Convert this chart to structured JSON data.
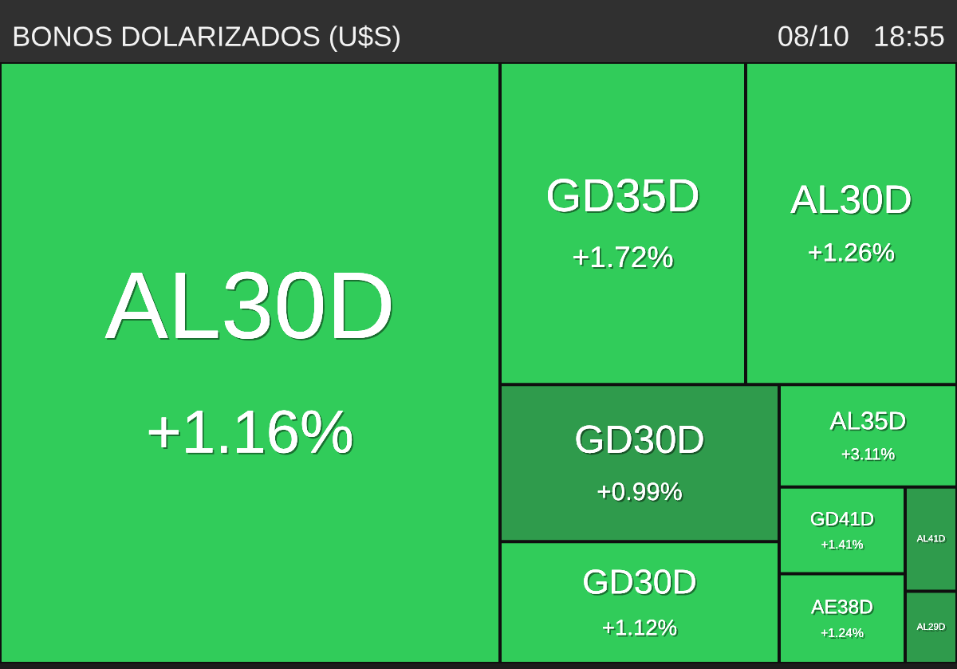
{
  "chart_data": {
    "type": "other",
    "title": "BONOS DOLARIZADOS (U$S)",
    "annotations": [
      "08/10   18:55"
    ],
    "categories": [
      "AL30D",
      "GD35D",
      "AL30D",
      "GD30D",
      "GD30D",
      "AL35D",
      "GD41D",
      "AE38D",
      "AL41D",
      "AL29D"
    ],
    "values": [
      1.16,
      1.72,
      1.26,
      0.99,
      1.12,
      3.11,
      1.41,
      1.24,
      null,
      null
    ],
    "value_labels": [
      "+1.16%",
      "+1.72%",
      "+1.26%",
      "+0.99%",
      "+1.12%",
      "+3.11%",
      "+1.41%",
      "+1.24%",
      null,
      null
    ],
    "colors": [
      "#31cc5a",
      "#31cc5a",
      "#31cc5a",
      "#2f9b4c",
      "#31cc5a",
      "#31cc5a",
      "#31cc5a",
      "#31cc5a",
      "#2f9b4c",
      "#2f9b4c"
    ]
  }
}
